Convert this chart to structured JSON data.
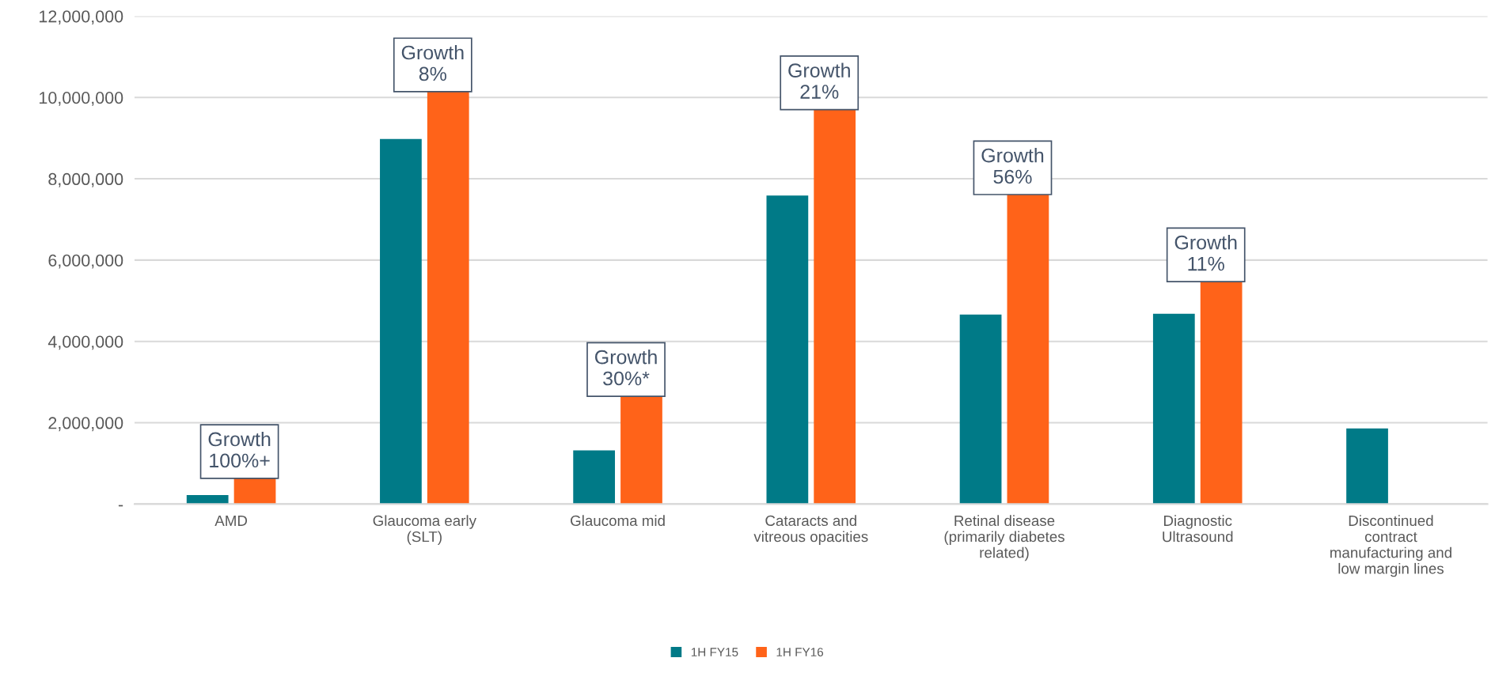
{
  "chart_data": {
    "type": "bar",
    "categories": [
      "AMD",
      "Glaucoma early\n(SLT)",
      "Glaucoma mid",
      "Cataracts and\nvitreous opacities",
      "Retinal disease\n(primarily diabetes\nrelated)",
      "Diagnostic\nUltrasound",
      "Discontinued\ncontract\nmanufacturing and\nlow margin lines"
    ],
    "series": [
      {
        "name": "1H FY15",
        "color": "#007a87",
        "values": [
          220000,
          8980000,
          1320000,
          7590000,
          4660000,
          4680000,
          1860000
        ]
      },
      {
        "name": "1H FY16",
        "color": "#ff6319",
        "values": [
          640000,
          10150000,
          2660000,
          9710000,
          7620000,
          5480000,
          null
        ]
      }
    ],
    "ylim": [
      0,
      12000000
    ],
    "yticks": [
      {
        "value": 0,
        "label": "-"
      },
      {
        "value": 2000000,
        "label": "2,000,000"
      },
      {
        "value": 4000000,
        "label": "4,000,000"
      },
      {
        "value": 6000000,
        "label": "6,000,000"
      },
      {
        "value": 8000000,
        "label": "8,000,000"
      },
      {
        "value": 10000000,
        "label": "10,000,000"
      },
      {
        "value": 12000000,
        "label": "12,000,000"
      }
    ],
    "grid": "y",
    "legend": "bottom",
    "annotations": [
      {
        "text": "Growth\n100%+",
        "x": "AMD",
        "y": 640000
      },
      {
        "text": "Growth\n8%",
        "x": "Glaucoma early\n(SLT)",
        "y": 10150000
      },
      {
        "text": "Growth\n30%*",
        "x": "Glaucoma mid",
        "y": 2660000
      },
      {
        "text": "Growth\n21%",
        "x": "Cataracts and\nvitreous opacities",
        "y": 9710000
      },
      {
        "text": "Growth\n56%",
        "x": "Retinal disease\n(primarily diabetes\nrelated)",
        "y": 7620000
      },
      {
        "text": "Growth\n11%",
        "x": "Diagnostic\nUltrasound",
        "y": 5480000
      }
    ]
  }
}
